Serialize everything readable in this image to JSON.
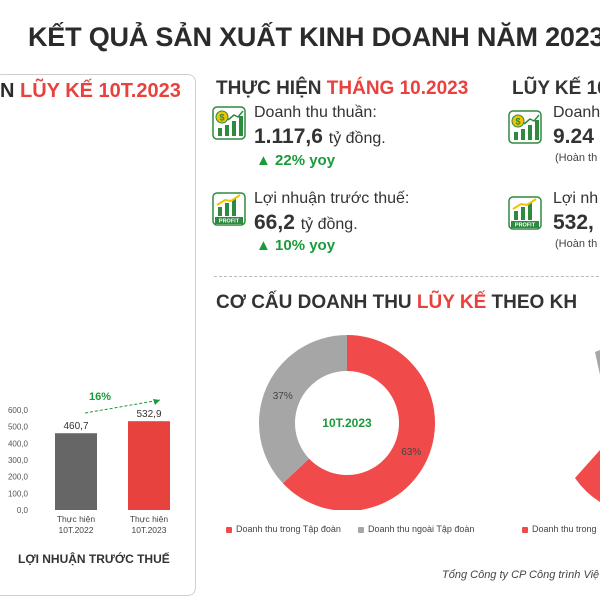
{
  "title": "KẾT QUẢ SẢN XUẤT KINH DOANH NĂM 2023",
  "left_panel": {
    "heading_prefix": "N",
    "heading_highlight": "LŨY KẾ 10T.2023",
    "growth_label": "16%",
    "chart_caption": "LỢI NHUẬN TRƯỚC THUẾ"
  },
  "monthly": {
    "heading_prefix": "THỰC HIỆN",
    "heading_highlight": "THÁNG 10.2023",
    "revenue_label": "Doanh thu thuần:",
    "revenue_value": "1.117,6",
    "revenue_unit": "tỷ đồng.",
    "revenue_yoy": "▲ 22% yoy",
    "profit_label": "Lợi nhuận trước thuế:",
    "profit_value": "66,2",
    "profit_unit": "tỷ đồng.",
    "profit_yoy": "▲ 10% yoy",
    "profit_icon_text": "PROFIT"
  },
  "cumulative": {
    "heading_highlight": "LŨY KẾ 10T",
    "revenue_label": "Doanh",
    "revenue_value": "9.24",
    "revenue_note": "(Hoàn th",
    "profit_label": "Lợi nh",
    "profit_value": "532,",
    "profit_note": "(Hoàn th",
    "profit_icon_text": "PROFIT"
  },
  "structure": {
    "heading_prefix": "CƠ CẤU DOANH THU",
    "heading_highlight": "LŨY KẾ",
    "heading_suffix": "THEO KH",
    "donut_center": "10T.2023",
    "legend_internal": "Doanh thu trong Tập đoàn",
    "legend_external": "Doanh thu ngoài Tập đoàn",
    "legend_internal_2": "Doanh thu trong"
  },
  "footer": "Tổng Công ty CP Công trình Việ",
  "colors": {
    "accent": "#e8423f",
    "green": "#1a9a3a",
    "grey": "#9e9e9e",
    "dark_bar": "#666666"
  },
  "chart_data": [
    {
      "type": "bar",
      "categories": [
        "Thực hiện 10T.2022",
        "Thực hiện 10T.2023"
      ],
      "values": [
        460.7,
        532.9
      ],
      "value_labels": [
        "460,7",
        "532,9"
      ],
      "yticks": [
        "0,0",
        "100,0",
        "200,0",
        "300,0",
        "400,0",
        "500,0",
        "600,0"
      ],
      "ylim": [
        0,
        600
      ],
      "title": "LỢI NHUẬN TRƯỚC THUẾ",
      "annotation": "16%"
    },
    {
      "type": "pie",
      "title": "10T.2023",
      "series": [
        {
          "name": "Doanh thu trong Tập đoàn",
          "value": 63,
          "label": "63%",
          "color": "#f04a4a"
        },
        {
          "name": "Doanh thu ngoài Tập đoàn",
          "value": 37,
          "label": "37%",
          "color": "#a6a6a6"
        }
      ]
    }
  ]
}
